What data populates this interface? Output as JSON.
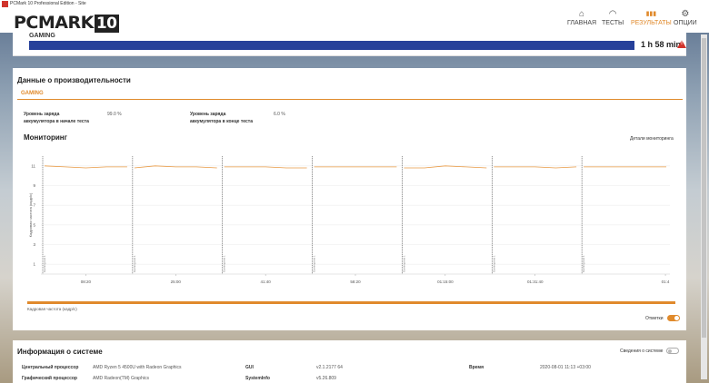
{
  "window": {
    "title": "PCMark 10 Professional Edition - Site"
  },
  "logo": {
    "text": "PCMARK",
    "num": "10"
  },
  "nav": [
    {
      "label": "ГЛАВНАЯ",
      "icon": "⌂"
    },
    {
      "label": "ТЕСТЫ",
      "icon": "◠"
    },
    {
      "label": "РЕЗУЛЬТАТЫ",
      "icon": "▮▮▮"
    },
    {
      "label": "ОПЦИИ",
      "icon": "⚙"
    }
  ],
  "top": {
    "label": "GAMING",
    "duration": "1 h 58 min"
  },
  "perf": {
    "title": "Данные о производительности",
    "tab": "GAMING",
    "battery_start_label_1": "Уровень заряда",
    "battery_start_label_2": "аккумулятора в начале теста",
    "battery_start_value": "99.0 %",
    "battery_end_label_1": "Уровень заряда",
    "battery_end_label_2": "аккумулятора в конце теста",
    "battery_end_value": "6.0 %",
    "monitoring_title": "Мониторинг",
    "monitoring_link": "Детали мониторинга",
    "legend": "Кадровая частота (кадр/с)",
    "markers_label": "Отметки"
  },
  "chart_data": {
    "type": "line",
    "ylabel": "Кадровая частота (кадр/с)",
    "yticks": [
      1,
      3,
      5,
      7,
      9,
      11
    ],
    "ylim": [
      0,
      12
    ],
    "xticks": [
      "08:20",
      "25:00",
      "41:40",
      "58:20",
      "01:15:00",
      "01:31:40",
      "01:4"
    ],
    "segment_label": "Gaming test 1",
    "series": [
      {
        "values": [
          11.0,
          10.9,
          10.8,
          10.9,
          10.9,
          10.8,
          11.0,
          10.9,
          10.9,
          10.8,
          10.9,
          10.9,
          10.9,
          10.8,
          10.8,
          10.9,
          10.9,
          10.9,
          10.9,
          10.9,
          10.8,
          10.8,
          11.0,
          10.9,
          10.8,
          10.9,
          10.9,
          10.9,
          10.8,
          10.9,
          10.9,
          10.9,
          10.9,
          10.9,
          10.9
        ]
      }
    ]
  },
  "system": {
    "title": "Информация о системе",
    "details_label": "Сведения о системе",
    "rows": [
      {
        "k1": "Центральный процессор",
        "v1": "AMD Ryzen 5 4500U with Radeon Graphics",
        "k2": "GUI",
        "v2": "v2.1.2177 64",
        "k3": "Время",
        "v3": "2020-08-01 11:13 +03:00"
      },
      {
        "k1": "Графический процессор",
        "v1": "AMD Radeon(TM) Graphics",
        "k2": "SystemInfo",
        "v2": "v5.26.809",
        "k3": "",
        "v3": ""
      }
    ]
  }
}
